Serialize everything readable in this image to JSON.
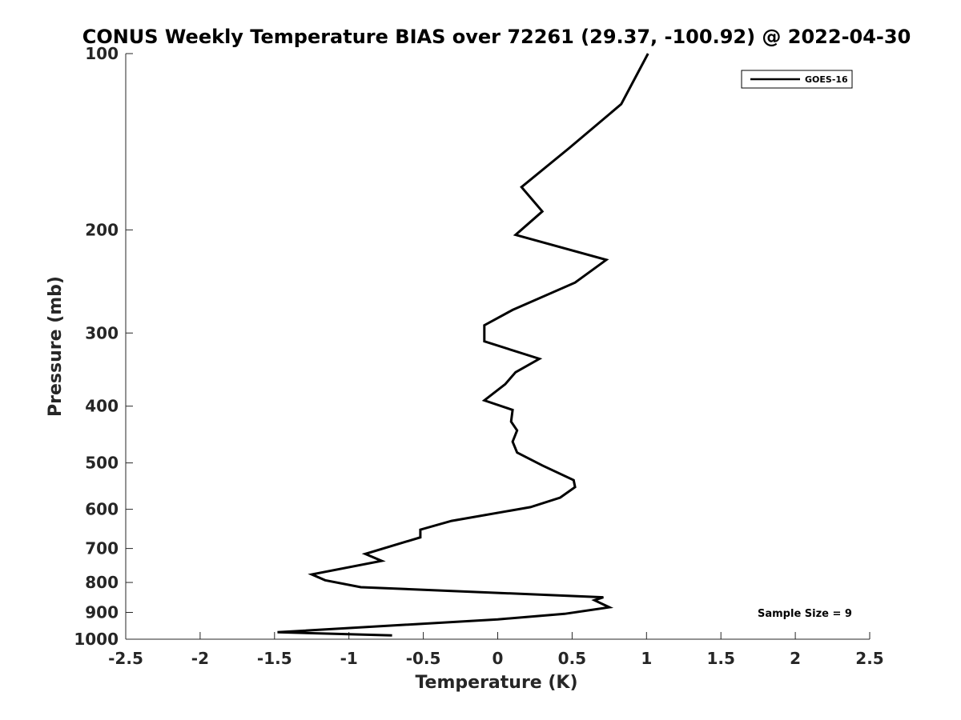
{
  "chart_data": {
    "type": "line",
    "title": "CONUS Weekly Temperature BIAS over 72261 (29.37, -100.92) @ 2022-04-30",
    "xlabel": "Temperature (K)",
    "ylabel": "Pressure (mb)",
    "xlim": [
      -2.5,
      2.5
    ],
    "ylim": [
      100,
      1000
    ],
    "y_scale": "log",
    "y_reversed": true,
    "grid": false,
    "legend_position": "top-right",
    "x_ticks": [
      "-2.5",
      "-2",
      "-1.5",
      "-1",
      "-0.5",
      "0",
      "0.5",
      "1",
      "1.5",
      "2",
      "2.5"
    ],
    "x_tick_values": [
      -2.5,
      -2,
      -1.5,
      -1,
      -0.5,
      0,
      0.5,
      1,
      1.5,
      2,
      2.5
    ],
    "y_ticks": [
      "100",
      "200",
      "300",
      "400",
      "500",
      "600",
      "700",
      "800",
      "900",
      "1000"
    ],
    "y_tick_values": [
      100,
      200,
      300,
      400,
      500,
      600,
      700,
      800,
      900,
      1000
    ],
    "series": [
      {
        "name": "GOES-16",
        "color": "#000000",
        "x": [
          1.01,
          0.83,
          0.48,
          0.16,
          0.3,
          0.12,
          0.73,
          0.52,
          0.1,
          -0.09,
          -0.09,
          0.28,
          0.12,
          0.05,
          -0.09,
          0.1,
          0.09,
          0.13,
          0.1,
          0.13,
          0.3,
          0.51,
          0.52,
          0.42,
          0.22,
          -0.31,
          -0.52,
          -0.52,
          -0.89,
          -0.78,
          -1.25,
          -1.16,
          -0.92,
          0.71,
          0.65,
          0.75,
          0.45,
          0.0,
          -1.48,
          -0.71
        ],
        "y": [
          100,
          122,
          145,
          169,
          186,
          204,
          225,
          246,
          274,
          291,
          310,
          332,
          350,
          367,
          391,
          406,
          425,
          440,
          460,
          480,
          505,
          535,
          550,
          573,
          595,
          628,
          650,
          670,
          715,
          735,
          775,
          793,
          815,
          848,
          858,
          882,
          905,
          925,
          973,
          985
        ]
      }
    ],
    "annotations": [
      "Sample Size = 9"
    ]
  }
}
